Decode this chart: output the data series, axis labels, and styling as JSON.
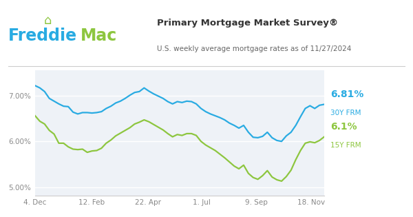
{
  "title": "Primary Mortgage Market Survey®",
  "subtitle": "U.S. weekly average mortgage rates as of 11/27/2024",
  "color_30y": "#29ABE2",
  "color_15y": "#8DC63F",
  "bg_color": "#ffffff",
  "plot_bg_color": "#eef2f7",
  "grid_color": "#ffffff",
  "xtick_labels": [
    "4. Dec",
    "12. Feb",
    "22. Apr",
    "1. Jul",
    "9. Sep",
    "18. Nov"
  ],
  "xtick_positions": [
    0.0,
    0.195,
    0.39,
    0.575,
    0.765,
    0.955
  ],
  "ylim": [
    4.82,
    7.55
  ],
  "yticks": [
    5.0,
    6.0,
    7.0
  ],
  "ytick_labels": [
    "5.00%",
    "6.00%",
    "7.00%"
  ],
  "y30_data": [
    7.22,
    7.17,
    7.09,
    6.94,
    6.88,
    6.82,
    6.77,
    6.76,
    6.64,
    6.6,
    6.63,
    6.63,
    6.62,
    6.63,
    6.65,
    6.72,
    6.77,
    6.84,
    6.88,
    6.94,
    7.01,
    7.07,
    7.09,
    7.17,
    7.1,
    7.04,
    6.99,
    6.94,
    6.87,
    6.82,
    6.87,
    6.85,
    6.88,
    6.87,
    6.82,
    6.72,
    6.65,
    6.6,
    6.56,
    6.52,
    6.47,
    6.4,
    6.35,
    6.29,
    6.35,
    6.2,
    6.09,
    6.08,
    6.11,
    6.2,
    6.08,
    6.02,
    6.0,
    6.12,
    6.2,
    6.35,
    6.54,
    6.72,
    6.78,
    6.72,
    6.79,
    6.81
  ],
  "y15_data": [
    6.56,
    6.44,
    6.38,
    6.24,
    6.16,
    5.96,
    5.96,
    5.88,
    5.83,
    5.82,
    5.83,
    5.76,
    5.79,
    5.8,
    5.85,
    5.96,
    6.03,
    6.12,
    6.18,
    6.24,
    6.3,
    6.38,
    6.42,
    6.47,
    6.43,
    6.37,
    6.31,
    6.25,
    6.17,
    6.1,
    6.15,
    6.13,
    6.17,
    6.17,
    6.13,
    6.0,
    5.92,
    5.86,
    5.8,
    5.72,
    5.64,
    5.55,
    5.46,
    5.4,
    5.48,
    5.3,
    5.21,
    5.17,
    5.25,
    5.36,
    5.22,
    5.16,
    5.13,
    5.23,
    5.37,
    5.6,
    5.8,
    5.96,
    5.99,
    5.97,
    6.02,
    6.1
  ],
  "label_30y_pct": "6.81%",
  "label_30y_name": "30Y FRM",
  "label_15y_pct": "6.1%",
  "label_15y_name": "15Y FRM",
  "freddie_blue": "#29ABE2",
  "freddie_green": "#8DC63F",
  "title_color": "#333333",
  "subtitle_color": "#666666",
  "tick_color": "#888888",
  "separator_color": "#cccccc"
}
